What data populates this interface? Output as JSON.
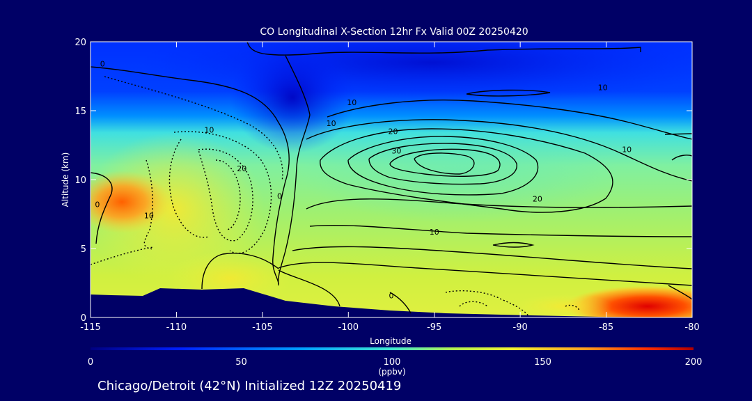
{
  "chart_data": {
    "type": "heatmap",
    "title": "CO Longitudinal X-Section 12hr  Fx Valid 00Z 20250420",
    "xlabel": "Longitude",
    "ylabel": "Altitude (km)",
    "xlim": [
      -115,
      -80
    ],
    "ylim": [
      0,
      20
    ],
    "x_ticks": [
      "-115",
      "-110",
      "-105",
      "-100",
      "-95",
      "-90",
      "-85",
      "-80"
    ],
    "x_tick_values": [
      -115,
      -110,
      -105,
      -100,
      -95,
      -90,
      -85,
      -80
    ],
    "y_ticks": [
      "0",
      "5",
      "10",
      "15",
      "20"
    ],
    "y_tick_values": [
      0,
      5,
      10,
      15,
      20
    ],
    "colorbar": {
      "ticks": [
        "0",
        "50",
        "100",
        "150",
        "200"
      ],
      "tick_values": [
        0,
        50,
        100,
        150,
        200
      ],
      "units": "(ppbv)",
      "range": [
        0,
        200
      ],
      "colors": [
        "#000080",
        "#0030ff",
        "#00a0ff",
        "#30e0e0",
        "#a0f060",
        "#f0f030",
        "#ffa020",
        "#ff4000",
        "#c00000"
      ]
    },
    "contour_labels": [
      {
        "text": "0",
        "lon": -114.3,
        "alt": 18.2
      },
      {
        "text": "10",
        "lon": -108.1,
        "alt": 13.4
      },
      {
        "text": "20",
        "lon": -106.2,
        "alt": 10.6
      },
      {
        "text": "0",
        "lon": -114.6,
        "alt": 8.0
      },
      {
        "text": "10",
        "lon": -111.6,
        "alt": 7.2
      },
      {
        "text": "0",
        "lon": -104.0,
        "alt": 8.6
      },
      {
        "text": "10",
        "lon": -101.0,
        "alt": 13.9
      },
      {
        "text": "10",
        "lon": -99.8,
        "alt": 15.4
      },
      {
        "text": "20",
        "lon": -97.4,
        "alt": 13.3
      },
      {
        "text": "30",
        "lon": -97.2,
        "alt": 11.9
      },
      {
        "text": "20",
        "lon": -89.0,
        "alt": 8.4
      },
      {
        "text": "10",
        "lon": -95.0,
        "alt": 6.0
      },
      {
        "text": "10",
        "lon": -85.2,
        "alt": 16.5
      },
      {
        "text": "10",
        "lon": -83.8,
        "alt": 12.0
      },
      {
        "text": "0",
        "lon": -97.5,
        "alt": 1.4
      }
    ],
    "grid": false,
    "legend": "bottom"
  },
  "footer": "Chicago/Detroit (42°N) Initialized 12Z 20250419"
}
